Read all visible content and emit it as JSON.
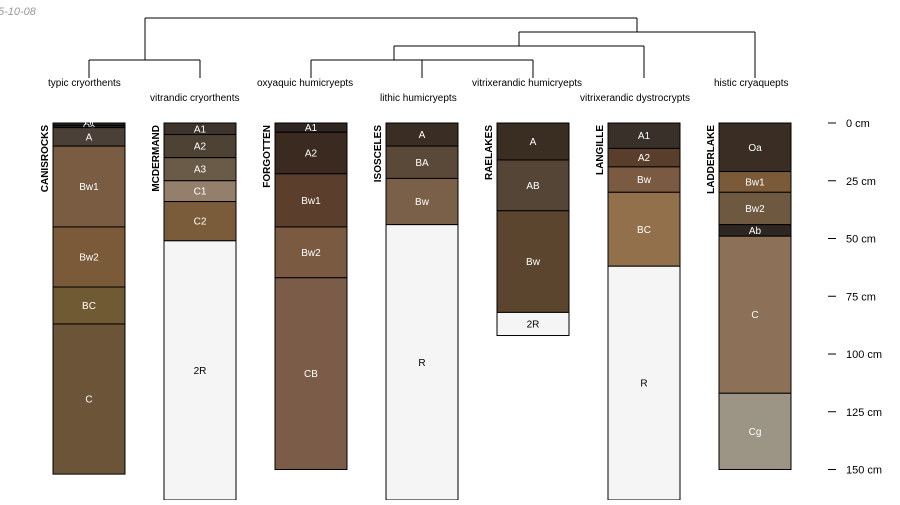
{
  "date_stamp": "5-10-08",
  "taxa": [
    "typic cryorthents",
    "vitrandic cryorthents",
    "oxyaquic humicryepts",
    "lithic humicryepts",
    "vitrixerandic humicryepts",
    "vitrixerandic dystrocrypts",
    "histic cryaquepts"
  ],
  "depth_axis": {
    "unit": "cm",
    "ticks": [
      0,
      25,
      50,
      75,
      100,
      125,
      150
    ],
    "labels": [
      "0 cm",
      "25 cm",
      "50 cm",
      "75 cm",
      "100 cm",
      "125 cm",
      "150 cm"
    ]
  },
  "colors": {
    "line": "#000000",
    "bg": "#ffffff"
  },
  "profiles": [
    {
      "id": "CANISROCKS",
      "horizons": [
        {
          "name": "Oi",
          "top": 0,
          "bottom": 1,
          "color": "#2d2925"
        },
        {
          "name": "Oe",
          "top": 1,
          "bottom": 2,
          "color": "#221e1a"
        },
        {
          "name": "A",
          "top": 2,
          "bottom": 10,
          "color": "#4a4038"
        },
        {
          "name": "Bw1",
          "top": 10,
          "bottom": 45,
          "color": "#7a5c42"
        },
        {
          "name": "Bw2",
          "top": 45,
          "bottom": 71,
          "color": "#7a5a38"
        },
        {
          "name": "BC",
          "top": 71,
          "bottom": 87,
          "color": "#705a34"
        },
        {
          "name": "C",
          "top": 87,
          "bottom": 152,
          "color": "#6b5438"
        }
      ]
    },
    {
      "id": "MCDERMAND",
      "horizons": [
        {
          "name": "A1",
          "top": 0,
          "bottom": 5,
          "color": "#3e342c"
        },
        {
          "name": "A2",
          "top": 5,
          "bottom": 15,
          "color": "#4e4234"
        },
        {
          "name": "A3",
          "top": 15,
          "bottom": 25,
          "color": "#6a5a48"
        },
        {
          "name": "C1",
          "top": 25,
          "bottom": 34,
          "color": "#94806a"
        },
        {
          "name": "C2",
          "top": 34,
          "bottom": 51,
          "color": "#7a5c3a"
        },
        {
          "name": "2R",
          "top": 51,
          "bottom": 170,
          "color": "#f5f5f5"
        }
      ]
    },
    {
      "id": "FORGOTTEN",
      "horizons": [
        {
          "name": "A1",
          "top": 0,
          "bottom": 4,
          "color": "#2e2620"
        },
        {
          "name": "A2",
          "top": 4,
          "bottom": 22,
          "color": "#3a2a20"
        },
        {
          "name": "Bw1",
          "top": 22,
          "bottom": 45,
          "color": "#5c3e2c"
        },
        {
          "name": "Bw2",
          "top": 45,
          "bottom": 67,
          "color": "#7a5a40"
        },
        {
          "name": "CB",
          "top": 67,
          "bottom": 150,
          "color": "#7a5c48"
        }
      ]
    },
    {
      "id": "ISOSCELES",
      "horizons": [
        {
          "name": "A",
          "top": 0,
          "bottom": 10,
          "color": "#3a2e24"
        },
        {
          "name": "BA",
          "top": 10,
          "bottom": 24,
          "color": "#5a4838"
        },
        {
          "name": "Bw",
          "top": 24,
          "bottom": 44,
          "color": "#7a6048"
        },
        {
          "name": "R",
          "top": 44,
          "bottom": 170,
          "color": "#f5f5f5"
        }
      ]
    },
    {
      "id": "RAELAKES",
      "horizons": [
        {
          "name": "A",
          "top": 0,
          "bottom": 16,
          "color": "#3a2e22"
        },
        {
          "name": "AB",
          "top": 16,
          "bottom": 38,
          "color": "#544536"
        },
        {
          "name": "Bw",
          "top": 38,
          "bottom": 82,
          "color": "#5c452e"
        },
        {
          "name": "2R",
          "top": 82,
          "bottom": 92,
          "color": "#f5f5f5"
        }
      ]
    },
    {
      "id": "LANGILLE",
      "horizons": [
        {
          "name": "A1",
          "top": 0,
          "bottom": 11,
          "color": "#3a302a"
        },
        {
          "name": "A2",
          "top": 11,
          "bottom": 19,
          "color": "#5a3e2c"
        },
        {
          "name": "Bw",
          "top": 19,
          "bottom": 30,
          "color": "#7a5a40"
        },
        {
          "name": "BC",
          "top": 30,
          "bottom": 62,
          "color": "#93704c"
        },
        {
          "name": "R",
          "top": 62,
          "bottom": 170,
          "color": "#f5f5f5"
        }
      ]
    },
    {
      "id": "LADDERLAKE",
      "horizons": [
        {
          "name": "Oa",
          "top": 0,
          "bottom": 21,
          "color": "#3a2e24"
        },
        {
          "name": "Bw1",
          "top": 21,
          "bottom": 30,
          "color": "#7a5a38"
        },
        {
          "name": "Bw2",
          "top": 30,
          "bottom": 44,
          "color": "#6e5840"
        },
        {
          "name": "Ab",
          "top": 44,
          "bottom": 49,
          "color": "#2e2620"
        },
        {
          "name": "C",
          "top": 49,
          "bottom": 117,
          "color": "#8c7058"
        },
        {
          "name": "Cg",
          "top": 117,
          "bottom": 150,
          "color": "#9c9484"
        }
      ]
    }
  ]
}
